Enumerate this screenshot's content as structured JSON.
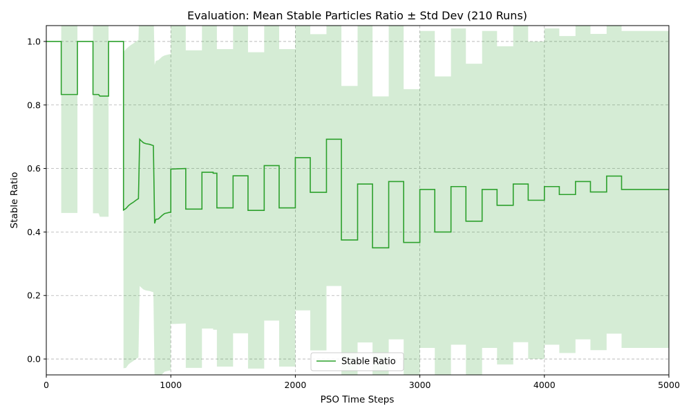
{
  "chart_data": {
    "type": "line",
    "title": "Evaluation: Mean Stable Particles Ratio ± Std Dev (210 Runs)",
    "xlabel": "PSO Time Steps",
    "ylabel": "Stable Ratio",
    "xlim": [
      0,
      5000
    ],
    "ylim": [
      -0.05,
      1.05
    ],
    "xticks": [
      0,
      1000,
      2000,
      3000,
      4000,
      5000
    ],
    "yticks": [
      0.0,
      0.2,
      0.4,
      0.6,
      0.8,
      1.0
    ],
    "xtick_labels": [
      "0",
      "1000",
      "2000",
      "3000",
      "4000",
      "5000"
    ],
    "ytick_labels": [
      "0.0",
      "0.2",
      "0.4",
      "0.6",
      "0.8",
      "1.0"
    ],
    "grid": true,
    "legend": {
      "position": "bottom-center",
      "entries": [
        "Stable Ratio"
      ]
    },
    "colors": {
      "line": "#2ca02c",
      "band": "#2ca02c"
    },
    "series": [
      {
        "name": "Stable Ratio",
        "x": [
          0,
          120,
          120,
          250,
          250,
          375,
          375,
          420,
          430,
          490,
          500,
          500,
          620,
          620,
          640,
          660,
          680,
          700,
          720,
          740,
          750,
          760,
          780,
          800,
          830,
          860,
          870,
          880,
          900,
          930,
          950,
          970,
          990,
          1000,
          1000,
          1120,
          1120,
          1250,
          1250,
          1340,
          1340,
          1370,
          1370,
          1500,
          1500,
          1620,
          1620,
          1750,
          1750,
          1870,
          1870,
          2000,
          2000,
          2120,
          2120,
          2250,
          2250,
          2370,
          2370,
          2500,
          2500,
          2620,
          2620,
          2750,
          2750,
          2870,
          2870,
          3000,
          3000,
          3120,
          3120,
          3250,
          3250,
          3370,
          3370,
          3500,
          3500,
          3620,
          3620,
          3750,
          3750,
          3870,
          3870,
          4000,
          4000,
          4120,
          4120,
          4250,
          4250,
          4370,
          4370,
          4500,
          4500,
          4620,
          4620,
          5000
        ],
        "y": [
          1.0,
          1.0,
          0.833,
          0.833,
          1.0,
          1.0,
          0.833,
          0.833,
          0.828,
          0.828,
          0.828,
          1.0,
          1.0,
          0.469,
          0.474,
          0.483,
          0.489,
          0.494,
          0.5,
          0.505,
          0.692,
          0.688,
          0.681,
          0.678,
          0.676,
          0.672,
          0.427,
          0.44,
          0.441,
          0.452,
          0.458,
          0.46,
          0.462,
          0.462,
          0.598,
          0.6,
          0.472,
          0.472,
          0.588,
          0.588,
          0.585,
          0.585,
          0.476,
          0.476,
          0.577,
          0.577,
          0.468,
          0.468,
          0.609,
          0.609,
          0.476,
          0.476,
          0.634,
          0.634,
          0.525,
          0.525,
          0.692,
          0.692,
          0.375,
          0.375,
          0.551,
          0.551,
          0.35,
          0.35,
          0.559,
          0.559,
          0.367,
          0.367,
          0.534,
          0.534,
          0.4,
          0.4,
          0.543,
          0.543,
          0.434,
          0.434,
          0.534,
          0.534,
          0.484,
          0.484,
          0.551,
          0.551,
          0.5,
          0.5,
          0.543,
          0.543,
          0.518,
          0.518,
          0.559,
          0.559,
          0.526,
          0.526,
          0.576,
          0.576,
          0.534,
          0.534
        ]
      },
      {
        "name": "",
        "band": true,
        "x": [
          0,
          120,
          120,
          250,
          250,
          375,
          375,
          420,
          430,
          490,
          500,
          500,
          620,
          620,
          640,
          660,
          680,
          700,
          720,
          740,
          750,
          760,
          780,
          800,
          830,
          860,
          870,
          880,
          900,
          930,
          950,
          970,
          990,
          1000,
          1000,
          1120,
          1120,
          1250,
          1250,
          1340,
          1340,
          1370,
          1370,
          1500,
          1500,
          1620,
          1620,
          1750,
          1750,
          1870,
          1870,
          2000,
          2000,
          2120,
          2120,
          2250,
          2250,
          2370,
          2370,
          2500,
          2500,
          2620,
          2620,
          2750,
          2750,
          2870,
          2870,
          3000,
          3000,
          3120,
          3120,
          3250,
          3250,
          3370,
          3370,
          3500,
          3500,
          3620,
          3620,
          3750,
          3750,
          3870,
          3870,
          4000,
          4000,
          4120,
          4120,
          4250,
          4250,
          4370,
          4370,
          4500,
          4500,
          4620,
          4620,
          5000
        ],
        "upper": [
          1.0,
          1.0,
          1.206,
          1.206,
          1.0,
          1.0,
          1.207,
          1.207,
          1.208,
          1.208,
          1.208,
          1.0,
          1.0,
          0.967,
          0.976,
          0.983,
          0.989,
          0.994,
          1.0,
          1.005,
          1.154,
          1.15,
          1.143,
          1.14,
          1.138,
          1.134,
          0.926,
          0.939,
          0.941,
          0.952,
          0.956,
          0.958,
          0.96,
          0.96,
          1.086,
          1.088,
          0.972,
          0.972,
          1.08,
          1.08,
          1.078,
          1.078,
          0.976,
          0.976,
          1.073,
          1.073,
          0.966,
          0.966,
          1.097,
          1.097,
          0.976,
          0.976,
          1.115,
          1.115,
          1.023,
          1.023,
          1.154,
          1.154,
          0.86,
          0.86,
          1.05,
          1.05,
          0.827,
          0.827,
          1.056,
          1.056,
          0.85,
          0.85,
          1.033,
          1.033,
          0.89,
          0.89,
          1.041,
          1.041,
          0.93,
          0.93,
          1.033,
          1.033,
          0.985,
          0.985,
          1.049,
          1.049,
          1.0,
          1.0,
          1.041,
          1.041,
          1.017,
          1.017,
          1.056,
          1.056,
          1.024,
          1.024,
          1.072,
          1.072,
          1.033,
          1.033
        ],
        "lower": [
          1.0,
          1.0,
          0.46,
          0.46,
          1.0,
          1.0,
          0.459,
          0.459,
          0.448,
          0.448,
          0.448,
          1.0,
          1.0,
          -0.029,
          -0.028,
          -0.017,
          -0.011,
          -0.006,
          0.0,
          0.005,
          0.23,
          0.226,
          0.219,
          0.216,
          0.214,
          0.21,
          -0.072,
          -0.059,
          -0.059,
          -0.048,
          -0.04,
          -0.038,
          -0.036,
          -0.036,
          0.11,
          0.112,
          -0.028,
          -0.028,
          0.096,
          0.096,
          0.092,
          0.092,
          -0.024,
          -0.024,
          0.081,
          0.081,
          -0.03,
          -0.03,
          0.121,
          0.121,
          -0.024,
          -0.024,
          0.153,
          0.153,
          0.027,
          0.027,
          0.23,
          0.23,
          -0.11,
          -0.11,
          0.052,
          0.052,
          -0.127,
          -0.127,
          0.062,
          0.062,
          -0.116,
          -0.116,
          0.035,
          0.035,
          -0.09,
          -0.09,
          0.045,
          0.045,
          -0.062,
          -0.062,
          0.035,
          0.035,
          -0.017,
          -0.017,
          0.053,
          0.053,
          0.0,
          0.0,
          0.045,
          0.045,
          0.019,
          0.019,
          0.062,
          0.062,
          0.028,
          0.028,
          0.08,
          0.08,
          0.035,
          0.035
        ]
      }
    ]
  }
}
